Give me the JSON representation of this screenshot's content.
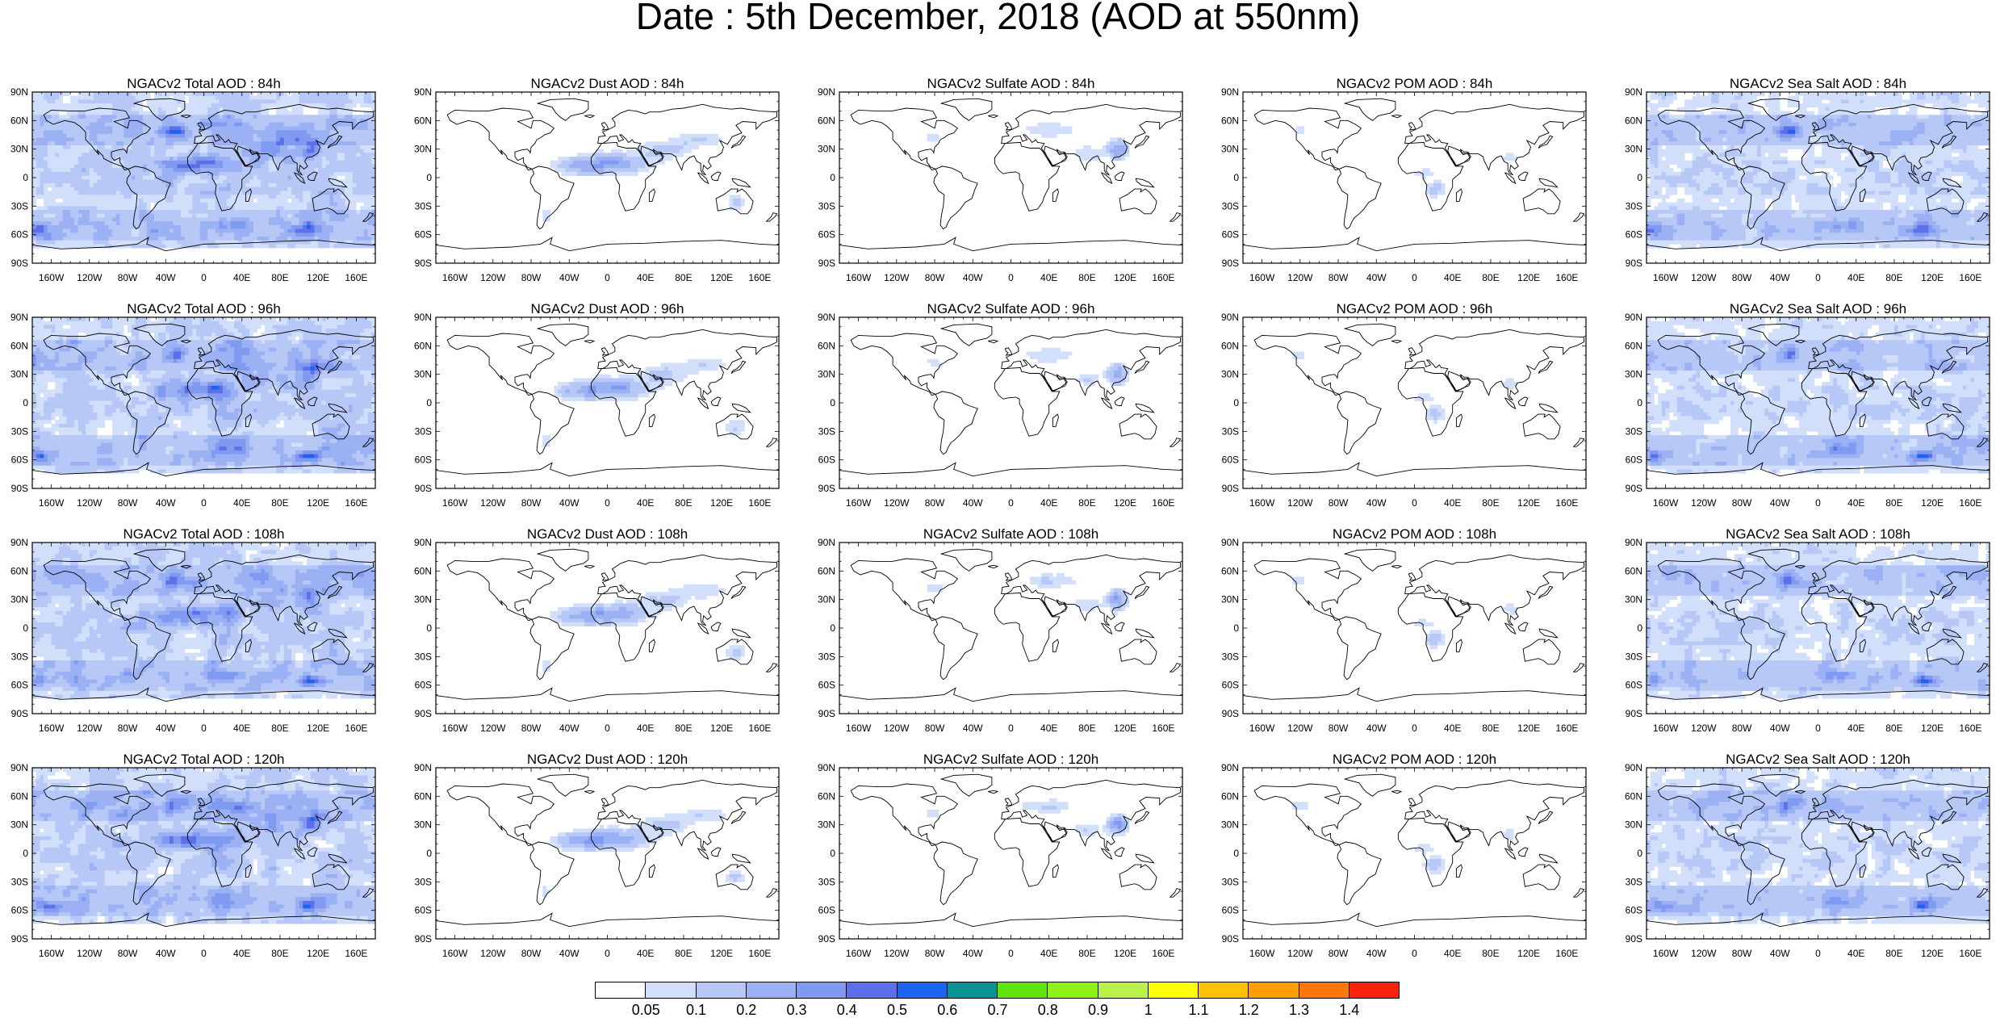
{
  "title": "Date : 5th December, 2018 (AOD at 550nm)",
  "grid": {
    "columns": [
      "Total",
      "Dust",
      "Sulfate",
      "POM",
      "SeaSalt"
    ],
    "forecast_hours": [
      "84h",
      "96h",
      "108h",
      "120h"
    ],
    "panel_titles": [
      [
        "NGACv2 Total AOD : 84h",
        "NGACv2 Dust AOD : 84h",
        "NGACv2 Sulfate AOD : 84h",
        "NGACv2 POM AOD : 84h",
        "NGACv2 Sea Salt AOD : 84h"
      ],
      [
        "NGACv2 Total AOD : 96h",
        "NGACv2 Dust AOD : 96h",
        "NGACv2 Sulfate AOD : 96h",
        "NGACv2 POM AOD : 96h",
        "NGACv2 Sea Salt AOD : 96h"
      ],
      [
        "NGACv2 Total AOD : 108h",
        "NGACv2 Dust AOD : 108h",
        "NGACv2 Sulfate AOD : 108h",
        "NGACv2 POM AOD : 108h",
        "NGACv2 Sea Salt AOD : 108h"
      ],
      [
        "NGACv2 Total AOD : 120h",
        "NGACv2 Dust AOD : 120h",
        "NGACv2 Sulfate AOD : 120h",
        "NGACv2 POM AOD : 120h",
        "NGACv2 Sea Salt  AOD : 120h"
      ]
    ]
  },
  "axes": {
    "lat_labels": [
      "90N",
      "60N",
      "30N",
      "0",
      "30S",
      "60S",
      "90S"
    ],
    "lon_labels": [
      "160W",
      "120W",
      "80W",
      "40W",
      "0",
      "40E",
      "80E",
      "120E",
      "160E"
    ],
    "lon_range": [
      -180,
      180
    ],
    "lat_range": [
      -90,
      90
    ]
  },
  "colorbar": {
    "labels": [
      "0.05",
      "0.1",
      "0.2",
      "0.3",
      "0.4",
      "0.5",
      "0.6",
      "0.7",
      "0.8",
      "0.9",
      "1",
      "1.1",
      "1.2",
      "1.3",
      "1.4"
    ],
    "colors": [
      "#ffffff",
      "#d2dffb",
      "#b7c8f7",
      "#9bb1f3",
      "#7f9af0",
      "#5d6fe9",
      "#1c63ef",
      "#0a9392",
      "#5fe30e",
      "#8cf117",
      "#baf249",
      "#ffff05",
      "#ffc107",
      "#ff9d05",
      "#fd770b",
      "#f9230d"
    ]
  },
  "colors": {
    "land_outline": "#000000",
    "background": "#ffffff"
  }
}
